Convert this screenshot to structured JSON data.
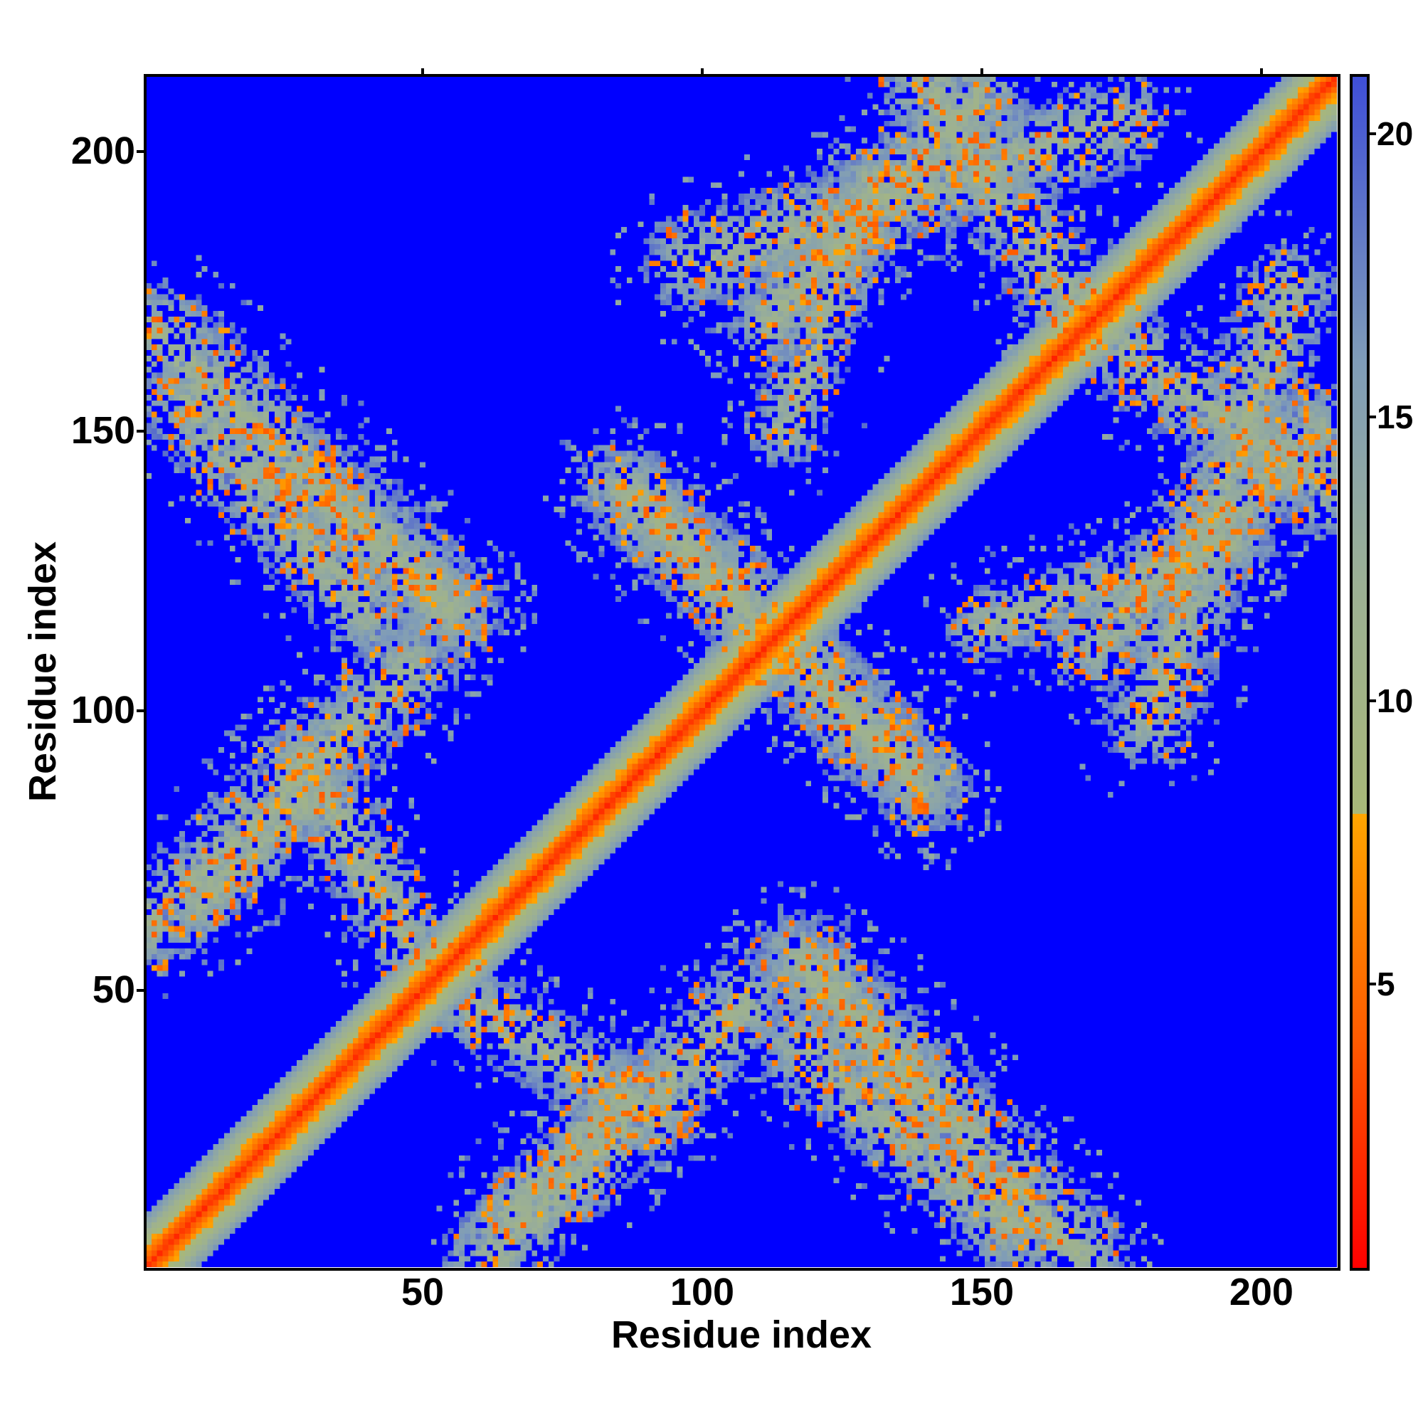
{
  "chart_data": {
    "type": "heatmap",
    "title": "",
    "xlabel": "Residue index",
    "ylabel": "Residue index",
    "xlim": [
      1,
      213
    ],
    "ylim": [
      1,
      213
    ],
    "n_residues": 213,
    "x_ticks": [
      50,
      100,
      150,
      200
    ],
    "y_ticks": [
      50,
      100,
      150,
      200
    ],
    "colorbar": {
      "ticks": [
        5,
        10,
        15,
        20
      ],
      "range": [
        0,
        21
      ],
      "colors": [
        {
          "value": 0,
          "color": "#ff0000"
        },
        {
          "value": 4,
          "color": "#ff5a00"
        },
        {
          "value": 8,
          "color": "#ffa500"
        },
        {
          "value": 8.01,
          "color": "#a8b878"
        },
        {
          "value": 12,
          "color": "#9cb094"
        },
        {
          "value": 16,
          "color": "#7f9cb8"
        },
        {
          "value": 21,
          "color": "#3f4fd8"
        }
      ],
      "background_color": "#0000ff"
    },
    "description_values": {
      "diagonal_value": 2,
      "contact_bands": [
        {
          "from": [
            2,
            168
          ],
          "to": [
            55,
            118
          ],
          "width": 10
        },
        {
          "from": [
            30,
            140
          ],
          "to": [
            55,
            118
          ],
          "width": 8
        },
        {
          "from": [
            2,
            62
          ],
          "to": [
            48,
            108
          ],
          "width": 9
        },
        {
          "from": [
            58,
            48
          ],
          "to": [
            92,
            28
          ],
          "width": 8
        },
        {
          "from": [
            65,
            10
          ],
          "to": [
            85,
            30
          ],
          "width": 7
        },
        {
          "from": [
            88,
            138
          ],
          "to": [
            140,
            86
          ],
          "width": 9
        },
        {
          "from": [
            112,
            170
          ],
          "to": [
            150,
            210
          ],
          "width": 9
        },
        {
          "from": [
            118,
            40
          ],
          "to": [
            155,
            8
          ],
          "width": 9
        },
        {
          "from": [
            180,
            98
          ],
          "to": [
            205,
            175
          ],
          "width": 9
        },
        {
          "from": [
            170,
            168
          ],
          "to": [
            212,
            140
          ],
          "width": 9
        },
        {
          "from": [
            150,
            115
          ],
          "to": [
            195,
            130
          ],
          "width": 7
        }
      ]
    }
  }
}
